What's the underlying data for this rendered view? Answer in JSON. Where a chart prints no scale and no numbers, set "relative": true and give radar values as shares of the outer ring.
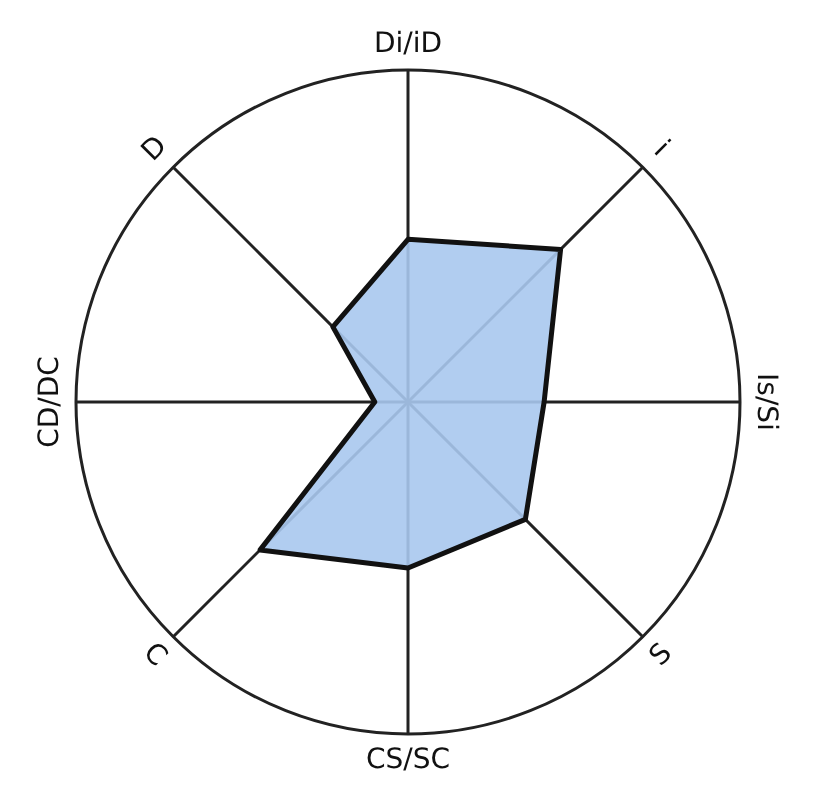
{
  "chart_data": {
    "type": "radar",
    "relative": true,
    "grid": true,
    "categories": [
      "Di/iD",
      "i",
      "Is/Si",
      "S",
      "CS/SC",
      "C",
      "CD/DC",
      "D"
    ],
    "series": [
      {
        "color": "#a9c8ee",
        "values": [
          0.49,
          0.65,
          0.41,
          0.5,
          0.5,
          0.63,
          0.1,
          0.32
        ]
      }
    ]
  }
}
